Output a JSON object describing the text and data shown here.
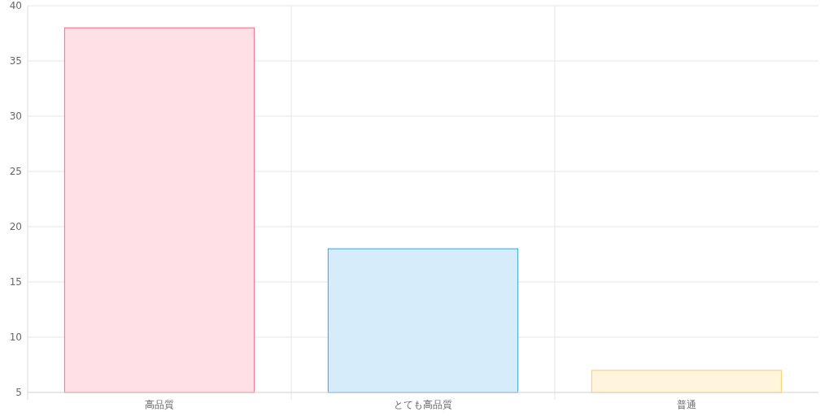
{
  "chart_data": {
    "type": "bar",
    "categories": [
      "高品質",
      "とても高品質",
      "普通"
    ],
    "values": [
      38,
      18,
      7
    ],
    "colors": [
      "#ffe0e6",
      "#d7ecfb",
      "#fff5dd"
    ],
    "ylim": [
      5,
      40
    ],
    "yticks": [
      5,
      10,
      15,
      20,
      25,
      30,
      35,
      40
    ],
    "grid": true
  }
}
